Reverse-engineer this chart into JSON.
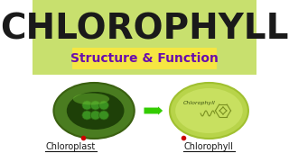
{
  "bg_color": "#ffffff",
  "top_bg_color": "#c8e06e",
  "title": "CHLOROPHYLL",
  "title_color": "#1a1a1a",
  "subtitle": "Structure & Function",
  "subtitle_color": "#6a0dad",
  "subtitle_bg": "#f5e642",
  "label_left": "Chloroplast",
  "label_right": "Chlorophyll",
  "label_color": "#1a1a1a",
  "chloroplast_outer": "#4a7c20",
  "chloroplast_inner": "#2d5a10",
  "chlorophyll_outer": "#b8d44a",
  "chlorophyll_inner": "#c8e060",
  "arrow_color": "#33cc00",
  "red_dot": "#cc0000"
}
